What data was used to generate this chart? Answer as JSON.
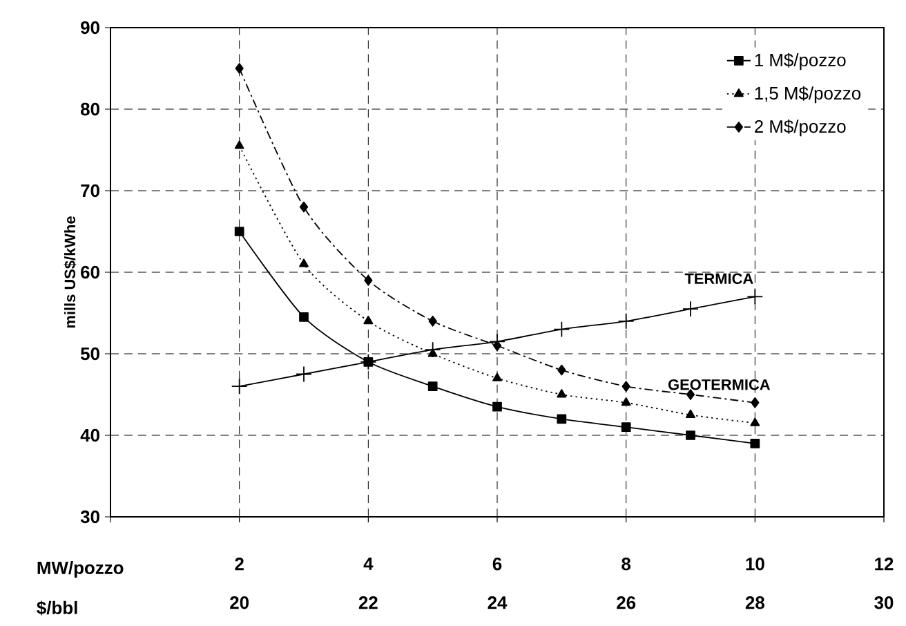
{
  "chart_data": {
    "type": "line",
    "ylabel": "mills US$/kWhe",
    "xlabel": "MW/pozzo",
    "x2label": "$/bbl",
    "xlim": [
      0,
      12
    ],
    "xticks": [
      {
        "value": 0,
        "label": null
      },
      2,
      4,
      6,
      8,
      10,
      12
    ],
    "x2lim": [
      18,
      30
    ],
    "x2ticks": [
      20,
      22,
      24,
      26,
      28,
      30
    ],
    "ylim": [
      30,
      90
    ],
    "yticks": [
      30,
      40,
      50,
      60,
      70,
      80,
      90
    ],
    "grid": true,
    "legend": "top right",
    "x": [
      2,
      3,
      4,
      5,
      6,
      7,
      8,
      9,
      10
    ],
    "series": [
      {
        "name": "1 M$/pozzo",
        "color": "#000000",
        "marker": "square",
        "line_style": "solid",
        "values": [
          65,
          54.5,
          49,
          46,
          43.5,
          42,
          41,
          40,
          39
        ]
      },
      {
        "name": "1,5 M$/pozzo",
        "color": "#000000",
        "marker": "triangle",
        "line_style": "dotted",
        "values": [
          75.5,
          61,
          54,
          50,
          47,
          45,
          44,
          42.5,
          41.5
        ]
      },
      {
        "name": "2 M$/pozzo",
        "color": "#000000",
        "marker": "diamond",
        "line_style": "dashed",
        "values": [
          85,
          68,
          59,
          54,
          51,
          48,
          46,
          45,
          44
        ]
      },
      {
        "color": "#000000",
        "marker": "cross",
        "line_style": "solid",
        "values": [
          46,
          47.5,
          49,
          50.5,
          51.5,
          53,
          54,
          55.5,
          57
        ]
      }
    ],
    "annotations": [
      "TERMICA",
      "GEOTERMICA"
    ]
  }
}
